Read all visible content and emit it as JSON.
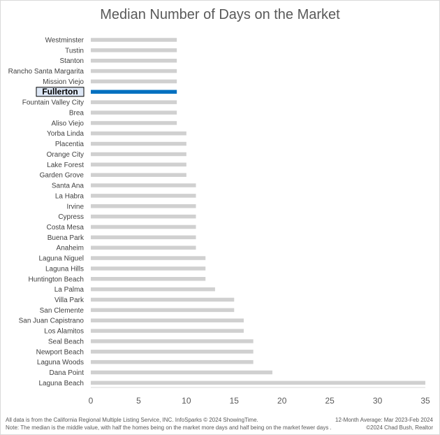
{
  "chart_data": {
    "type": "bar",
    "orientation": "horizontal",
    "title": "Median Number of Days on the Market",
    "categories": [
      "Westminster",
      "Tustin",
      "Stanton",
      "Rancho Santa Margarita",
      "Mission Viejo",
      "Fullerton",
      "Fountain Valley City",
      "Brea",
      "Aliso Viejo",
      "Yorba Linda",
      "Placentia",
      "Orange City",
      "Lake Forest",
      "Garden Grove",
      "Santa Ana",
      "La Habra",
      "Irvine",
      "Cypress",
      "Costa Mesa",
      "Buena Park",
      "Anaheim",
      "Laguna Niguel",
      "Laguna Hills",
      "Huntington Beach",
      "La Palma",
      "Villa Park",
      "San Clemente",
      "San Juan Capistrano",
      "Los Alamitos",
      "Seal Beach",
      "Newport Beach",
      "Laguna Woods",
      "Dana Point",
      "Laguna Beach"
    ],
    "values": [
      9,
      9,
      9,
      9,
      9,
      9,
      9,
      9,
      9,
      10,
      10,
      10,
      10,
      10,
      11,
      11,
      11,
      11,
      11,
      11,
      11,
      12,
      12,
      12,
      13,
      15,
      15,
      16,
      16,
      17,
      17,
      17,
      19,
      35
    ],
    "highlight": "Fullerton",
    "highlight_color": "#0070c0",
    "bar_color": "#d0d0d0",
    "xlim": [
      0,
      35
    ],
    "xticks": [
      0,
      5,
      10,
      15,
      20,
      25,
      30,
      35
    ],
    "grid": false
  },
  "footer": {
    "source": "All data is from the California Regional Multiple Listing Service, INC. InfoSparks © 2024 ShowingTime.",
    "note": "Note: The median is the middle value, with half the homes being on the market more days and half being on the market fewer days .",
    "period": "12-Month Average: Mar 2023-Feb 2024",
    "credit": "©2024 Chad Bush, Realtor"
  }
}
